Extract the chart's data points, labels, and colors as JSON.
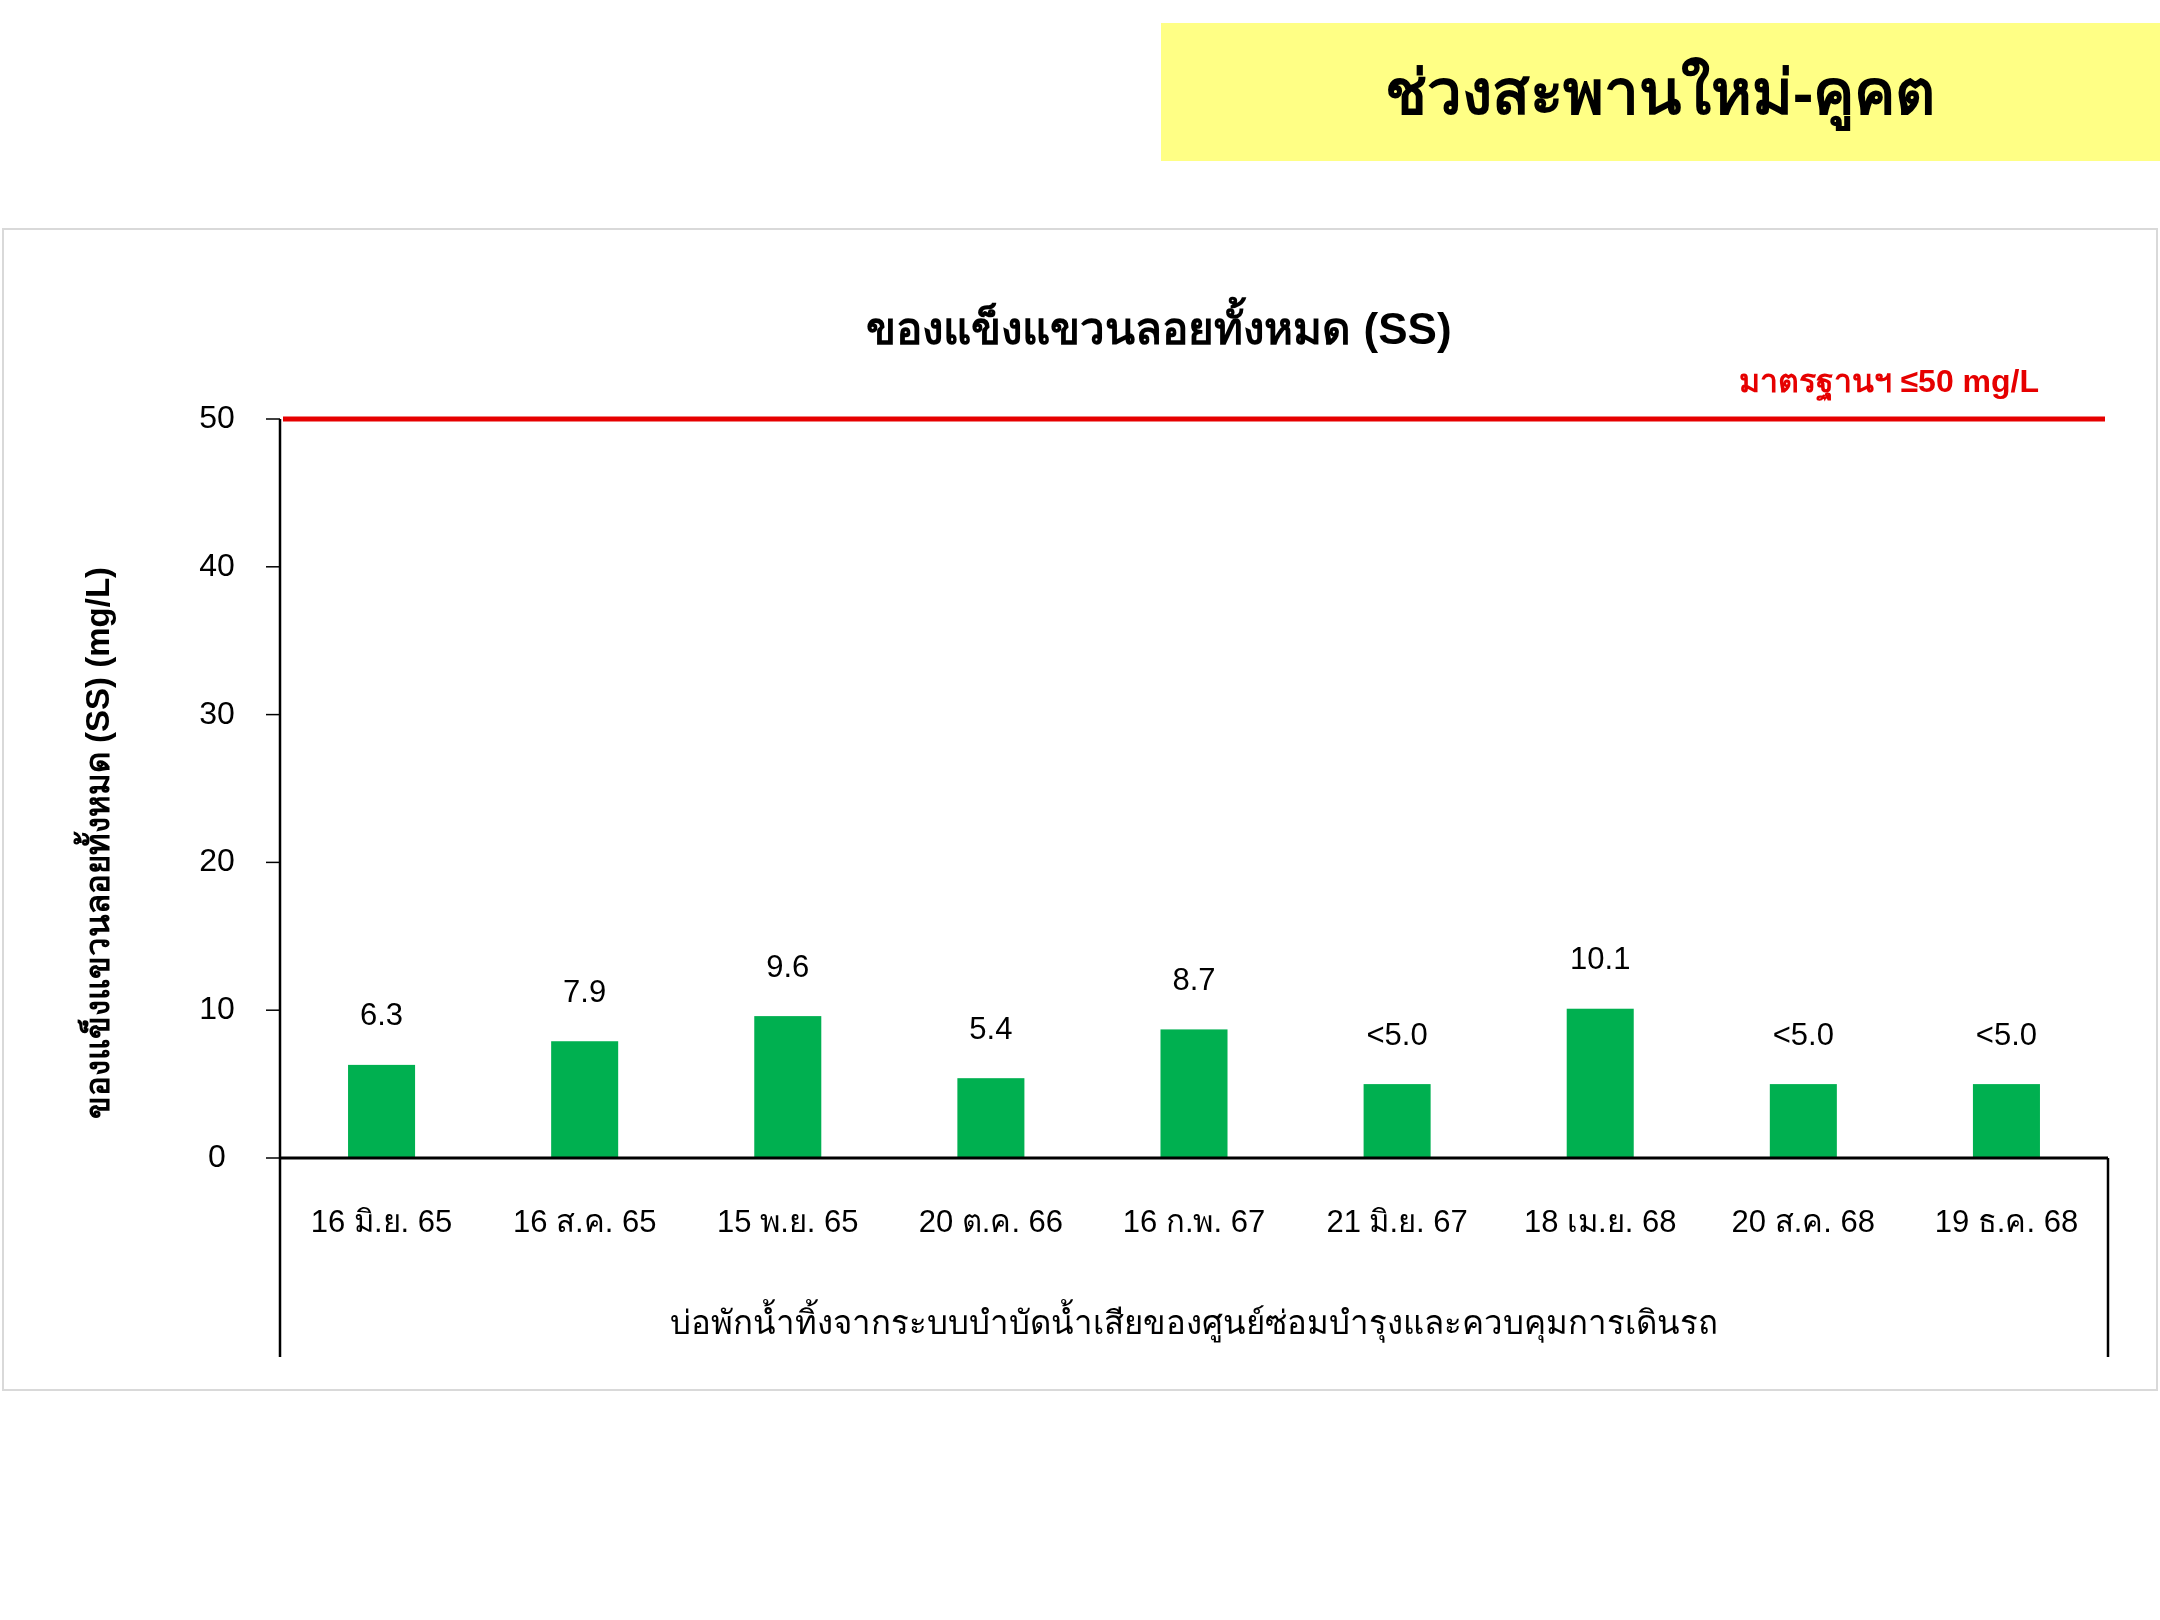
{
  "chart_data": {
    "type": "bar",
    "title": "ช่วงสะพานใหม่-คูคต",
    "subtitle": "ของแข็งแขวนลอยทั้งหมด (SS)",
    "xlabel": "บ่อพักน้ำทิ้งจากระบบบำบัดน้ำเสียของศูนย์ซ่อมบำรุงและควบคุมการเดินรถ",
    "ylabel": "ของแข็งแขวนลอยทั้งหมด (SS) (mg/L)",
    "categories": [
      "16 มิ.ย. 65",
      "16 ส.ค. 65",
      "15 พ.ย. 65",
      "20 ต.ค. 66",
      "16 ก.พ. 67",
      "21 มิ.ย. 67",
      "18 เม.ย. 68",
      "20 ส.ค. 68",
      "19 ธ.ค. 68"
    ],
    "values": [
      6.3,
      7.9,
      9.6,
      5.4,
      8.7,
      5.0,
      10.1,
      5.0,
      5.0
    ],
    "color": "#00b050",
    "value_labels": [
      "6.3",
      "7.9",
      "9.6",
      "5.4",
      "8.7",
      "<5.0",
      "10.1",
      "<5.0",
      "<5.0"
    ],
    "ylim": [
      0,
      50
    ],
    "yticks": [
      0,
      10,
      20,
      30,
      40,
      50
    ],
    "ref_lines": [
      {
        "axis": "y",
        "value": 50,
        "label": "มาตรฐานฯ ≤50 mg/L",
        "color": "#e60000"
      }
    ]
  }
}
